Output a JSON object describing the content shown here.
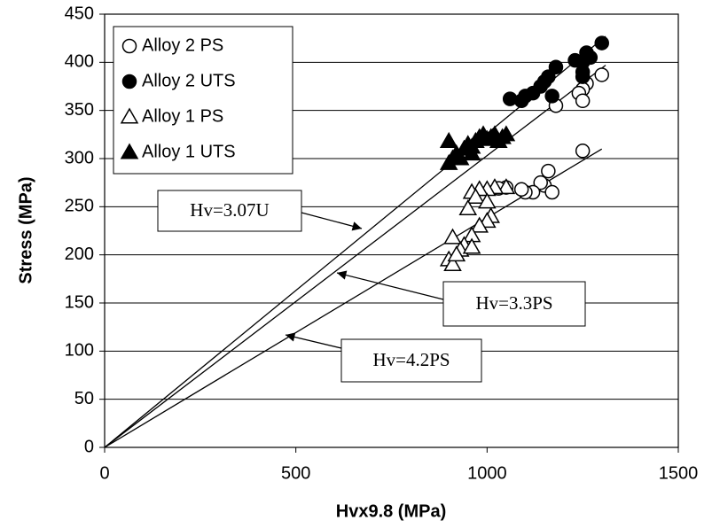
{
  "chart_data": {
    "type": "scatter",
    "xlabel": "Hvx9.8 (MPa)",
    "ylabel": "Stress (MPa)",
    "xlim": [
      0,
      1500
    ],
    "xticks": [
      0,
      500,
      1000,
      1500
    ],
    "ylim": [
      0,
      450
    ],
    "yticks": [
      0,
      50,
      100,
      150,
      200,
      250,
      300,
      350,
      400,
      450
    ],
    "grid": true,
    "legend": "upper left",
    "series": [
      {
        "name": "Alloy 2 PS",
        "marker": "circle",
        "filled": false,
        "color": "#000000",
        "x": [
          1300,
          1260,
          1250,
          1240,
          1250,
          1180,
          1250,
          1160,
          1150,
          1140,
          1170,
          1120,
          1100,
          1090,
          1050,
          1030
        ],
        "values": [
          387,
          378,
          372,
          368,
          360,
          355,
          308,
          287,
          272,
          275,
          265,
          265,
          265,
          268,
          270,
          269
        ]
      },
      {
        "name": "Alloy 2 UTS",
        "marker": "circle",
        "filled": true,
        "color": "#000000",
        "x": [
          1300,
          1260,
          1270,
          1250,
          1230,
          1250,
          1180,
          1160,
          1150,
          1140,
          1120,
          1100,
          1090,
          1060,
          1170,
          1250
        ],
        "values": [
          420,
          410,
          405,
          400,
          402,
          390,
          395,
          385,
          380,
          375,
          368,
          365,
          360,
          362,
          365,
          385
        ]
      },
      {
        "name": "Alloy 1 PS",
        "marker": "triangle",
        "filled": false,
        "color": "#000000",
        "x": [
          1050,
          1020,
          1000,
          980,
          960,
          970,
          1000,
          1010,
          1000,
          980,
          950,
          960,
          940,
          930,
          910,
          960,
          900,
          910,
          920
        ],
        "values": [
          270,
          270,
          268,
          268,
          265,
          260,
          255,
          240,
          235,
          230,
          248,
          220,
          210,
          205,
          218,
          208,
          195,
          190,
          200
        ]
      },
      {
        "name": "Alloy 1 UTS",
        "marker": "triangle",
        "filled": true,
        "color": "#000000",
        "x": [
          900,
          910,
          900,
          920,
          940,
          950,
          960,
          970,
          980,
          990,
          1000,
          1010,
          1020,
          1030,
          1040,
          1050,
          960,
          930
        ],
        "values": [
          318,
          300,
          295,
          305,
          310,
          315,
          305,
          318,
          322,
          325,
          320,
          322,
          325,
          318,
          322,
          325,
          312,
          300
        ]
      }
    ],
    "lines": [
      {
        "label": "Hv=3.07U",
        "x": [
          0,
          1310
        ],
        "y": [
          0,
          427
        ]
      },
      {
        "label": "Hv=3.3PS",
        "x": [
          0,
          1310
        ],
        "y": [
          0,
          397
        ]
      },
      {
        "label": "Hv=4.2PS",
        "x": [
          0,
          1300
        ],
        "y": [
          0,
          310
        ]
      }
    ]
  }
}
